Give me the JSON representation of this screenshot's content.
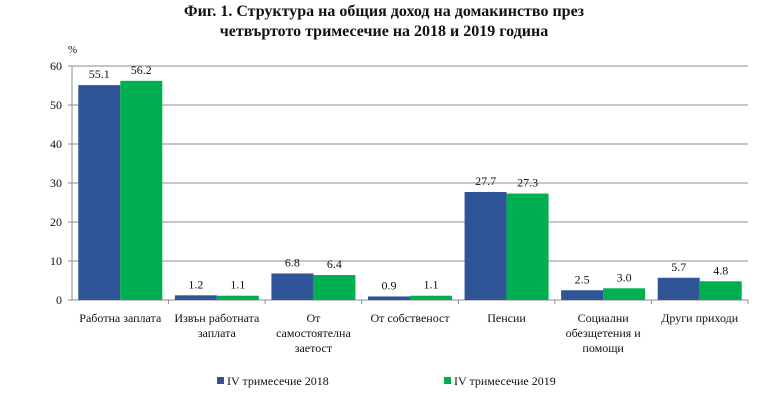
{
  "chart_data": {
    "type": "bar",
    "title_lines": [
      "Фиг. 1. Структура на общия доход на домакинство през",
      "четвъртото тримесечие на 2018 и 2019 година"
    ],
    "ylabel": "%",
    "xlabel": "",
    "ylim": [
      0,
      60
    ],
    "yticks": [
      0,
      10,
      20,
      30,
      40,
      50,
      60
    ],
    "grid": true,
    "legend_position": "bottom",
    "categories": [
      [
        "Работна заплата"
      ],
      [
        "Извън работната",
        "заплата"
      ],
      [
        "От",
        "самостоятелна",
        "заетост"
      ],
      [
        "От собственост"
      ],
      [
        "Пенсии"
      ],
      [
        "Социални",
        "обезщетения и",
        "помощи"
      ],
      [
        "Други приходи"
      ]
    ],
    "series": [
      {
        "name": "IV  тримесечие 2018",
        "color": "#2f5597",
        "values": [
          55.1,
          1.2,
          6.8,
          0.9,
          27.7,
          2.5,
          5.7
        ],
        "labels": [
          "55.1",
          "1.2",
          "6.8",
          "0.9",
          "27.7",
          "2.5",
          "5.7"
        ]
      },
      {
        "name": "IV  тримесечие 2019",
        "color": "#00b050",
        "values": [
          56.2,
          1.1,
          6.4,
          1.1,
          27.3,
          3.0,
          4.8
        ],
        "labels": [
          "56.2",
          "1.1",
          "6.4",
          "1.1",
          "27.3",
          "3.0",
          "4.8"
        ]
      }
    ]
  }
}
